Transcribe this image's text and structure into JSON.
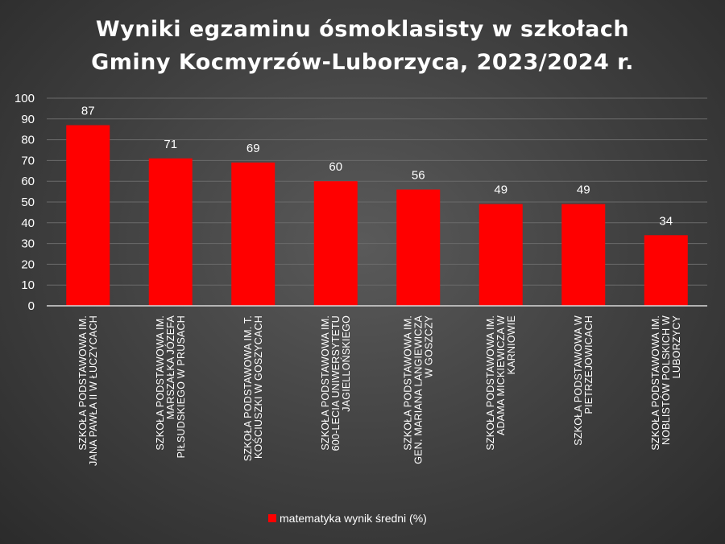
{
  "chart_data": {
    "type": "bar",
    "title_lines": [
      "Wyniki egzaminu ósmoklasisty w  szkołach",
      "Gminy Kocmyrzów-Luborzyca, 2023/2024 r."
    ],
    "categories": [
      [
        "SZKOŁA PODSTAWOWA IM.",
        "JANA PAWŁA II W ŁUCZYCACH"
      ],
      [
        "SZKOŁA PODSTAWOWA IM.",
        "MARSZAŁKA JÓZEFA",
        "PIŁSUDSKIEGO W PRUSACH"
      ],
      [
        "SZKOŁA PODSTAWOWA IM. T.",
        "KOŚCIUSZKI W GOSZYCACH"
      ],
      [
        "SZKOŁA PODSTAWOWA IM.",
        "600-LECIA UNIWERSYTETU",
        "JAGIELLOŃSKIEGO"
      ],
      [
        "SZKOŁA PODSTAWOWA IM.",
        "GEN. MARIANA LANGIEWICZA",
        "W GOSZCZY"
      ],
      [
        "SZKOŁA PODSTAWOWA IM.",
        "ADAMA MICKIEWICZA W",
        "KARNIOWIE"
      ],
      [
        "SZKOŁA PODSTAWOWA W",
        "PIETRZEJOWICACH"
      ],
      [
        "SZKOŁA PODSTAWOWA IM.",
        "NOBLISTÓW POLSKICH W",
        "LUBORZYCY"
      ]
    ],
    "series": [
      {
        "name": "matematyka wynik średni (%)",
        "values": [
          87,
          71,
          69,
          60,
          56,
          49,
          49,
          34
        ],
        "color": "#ff0000"
      }
    ],
    "yticks": [
      "0",
      "10",
      "20",
      "30",
      "40",
      "50",
      "60",
      "70",
      "80",
      "90",
      "100"
    ],
    "ylim": [
      0,
      100
    ],
    "grid": true,
    "legend_position": "bottom",
    "data_labels": true,
    "colors": {
      "bar": "#ff0000",
      "text": "#ffffff",
      "grid": "#6a6a6a",
      "axis": "#d9d9d9"
    }
  }
}
